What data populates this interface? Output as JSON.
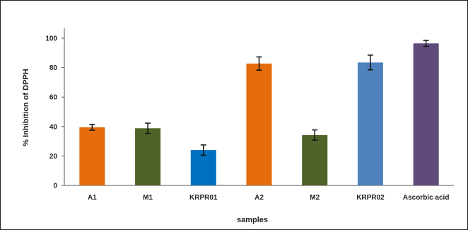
{
  "chart_data": {
    "type": "bar",
    "xlabel": "samples",
    "ylabel": "% Inhibition of DPPH",
    "ylim": [
      0,
      100
    ],
    "yticks": [
      0,
      20,
      40,
      60,
      80,
      100
    ],
    "categories": [
      "A1",
      "M1",
      "KRPR01",
      "A2",
      "M2",
      "KRPR02",
      "Ascorbic acid"
    ],
    "values": [
      39.5,
      38.8,
      24.0,
      82.8,
      34.2,
      83.5,
      96.5
    ],
    "errors": [
      2.0,
      3.5,
      3.5,
      4.5,
      3.5,
      5.0,
      2.0
    ],
    "colors": [
      "#E46C0A",
      "#4F6228",
      "#0070C0",
      "#E46C0A",
      "#4F6228",
      "#4F81BD",
      "#604A7B"
    ],
    "grid": false,
    "legend": "none"
  }
}
